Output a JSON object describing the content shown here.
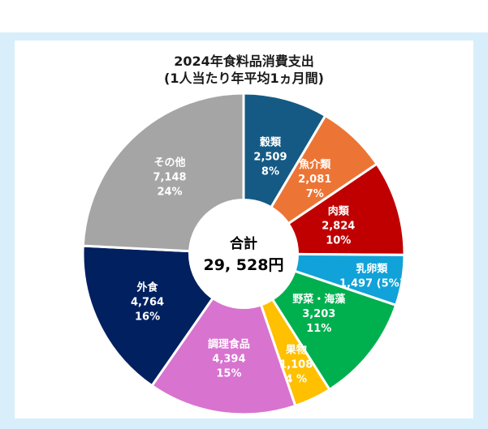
{
  "chart_data": {
    "type": "pie",
    "title": "2024年食料品消費支出",
    "subtitle": "(1人当たり年平均1ヵ月間)",
    "center": {
      "label": "合計",
      "value": "29, 528円"
    },
    "slices": [
      {
        "name": "穀類",
        "value": 2509,
        "value_label": "2,509",
        "percent_label": "8%",
        "color": "#155a84"
      },
      {
        "name": "魚介類",
        "value": 2081,
        "value_label": "2,081",
        "percent_label": "7%",
        "color": "#ec7535"
      },
      {
        "name": "肉類",
        "value": 2824,
        "value_label": "2,824",
        "percent_label": "10%",
        "color": "#c00000"
      },
      {
        "name": "乳卵類",
        "value": 1497,
        "value_label": "1,497 (5%)",
        "percent_label": "",
        "color": "#10a2d8"
      },
      {
        "name": "野菜・海藻",
        "value": 3203,
        "value_label": "3,203",
        "percent_label": "11%",
        "color": "#00b04f"
      },
      {
        "name": "果物",
        "value": 1108,
        "value_label": "1,108",
        "percent_label": "4 %",
        "color": "#ffc000"
      },
      {
        "name": "調理食品",
        "value": 4394,
        "value_label": "4,394",
        "percent_label": "15%",
        "color": "#d873cf"
      },
      {
        "name": "外食",
        "value": 4764,
        "value_label": "4,764",
        "percent_label": "16%",
        "color": "#002060"
      },
      {
        "name": "その他",
        "value": 7148,
        "value_label": "7,148",
        "percent_label": "24%",
        "color": "#a5a5a5"
      }
    ]
  }
}
